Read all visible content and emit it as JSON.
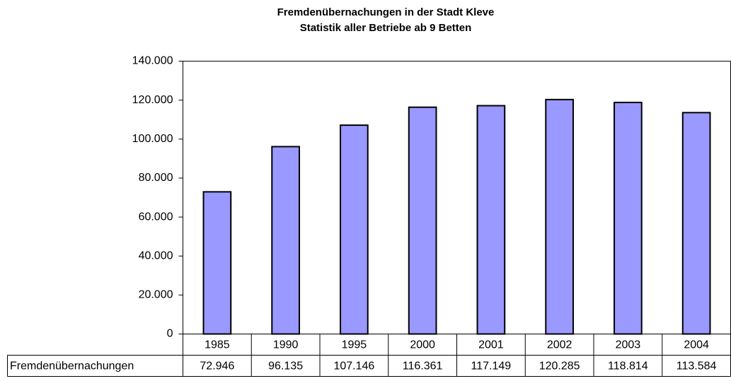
{
  "chart_data": {
    "type": "bar",
    "title": "Fremdenübernachungen in der Stadt Kleve",
    "subtitle": "Statistik aller Betriebe ab 9 Betten",
    "categories": [
      "1985",
      "1990",
      "1995",
      "2000",
      "2001",
      "2002",
      "2003",
      "2004"
    ],
    "series": [
      {
        "name": "Fremdenübernachungen",
        "color": "#9999ff",
        "values": [
          72946,
          96135,
          107146,
          116361,
          117149,
          120285,
          118814,
          113584
        ],
        "value_labels": [
          "72.946",
          "96.135",
          "107.146",
          "116.361",
          "117.149",
          "120.285",
          "118.814",
          "113.584"
        ]
      }
    ],
    "ylim": [
      0,
      140000
    ],
    "yticks": [
      0,
      {
        "value": 20000,
        "label": "20.000"
      },
      {
        "value": 40000,
        "label": "40.000"
      },
      {
        "value": 60000,
        "label": "60.000"
      },
      {
        "value": 80000,
        "label": "80.000"
      },
      {
        "value": 100000,
        "label": "100.000"
      },
      {
        "value": 120000,
        "label": "120.000"
      },
      {
        "value": 140000,
        "label": "140.000"
      }
    ],
    "grid": false
  }
}
